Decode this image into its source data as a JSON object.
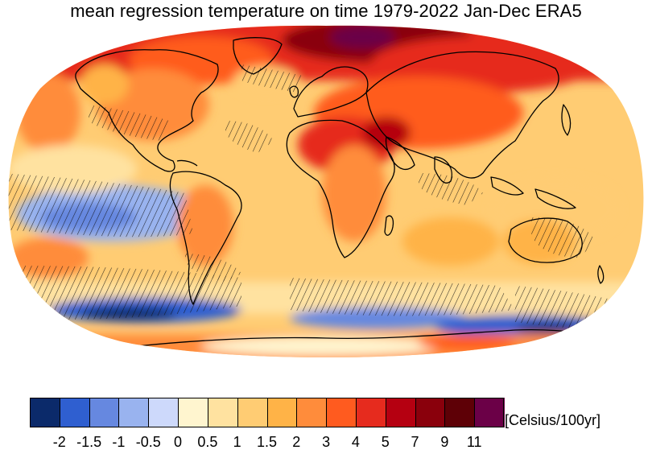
{
  "title": "mean regression temperature on time 1979-2022 Jan-Dec ERA5",
  "units": "[Celsius/100yr]",
  "colorbar": {
    "colors": [
      "#0b2a6a",
      "#2f5fd0",
      "#6688e0",
      "#99b3ef",
      "#cdd9fb",
      "#fff5cf",
      "#ffe2a0",
      "#ffcc73",
      "#ffb347",
      "#ff8c3b",
      "#ff5b1f",
      "#e62b1e",
      "#b50011",
      "#8a000c",
      "#5e0006",
      "#6b0047"
    ],
    "tick_labels": [
      "-2",
      "-1.5",
      "-1",
      "-0.5",
      "0",
      "0.5",
      "1",
      "1.5",
      "2",
      "3",
      "4",
      "5",
      "7",
      "9",
      "11"
    ]
  },
  "map": {
    "projection": "Robinson",
    "coastlines": true,
    "hatching": "stippled regions (hatched)"
  }
}
